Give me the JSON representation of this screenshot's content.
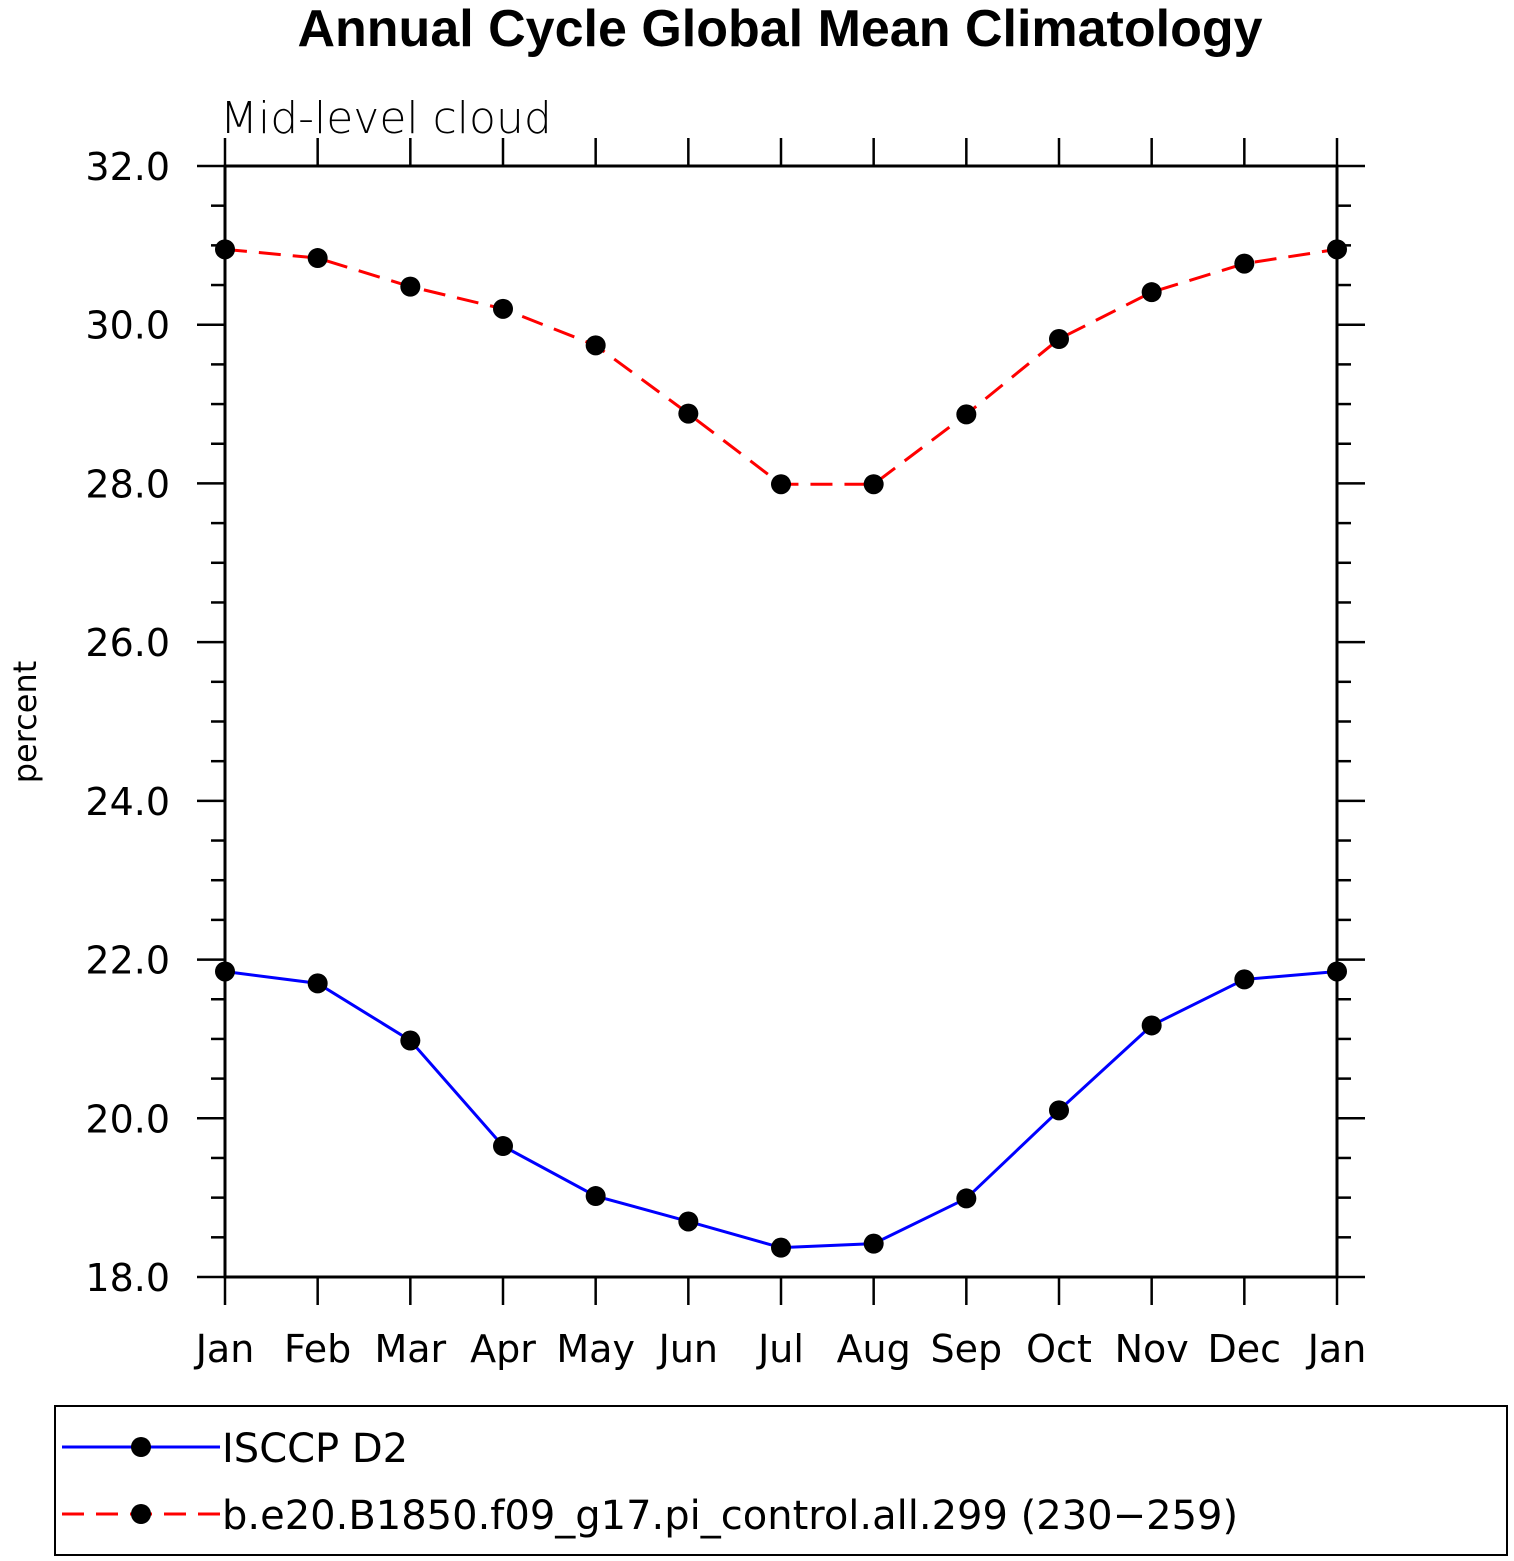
{
  "chart_data": {
    "type": "line",
    "title": "Annual Cycle Global Mean Climatology",
    "subtitle": "Mid-level cloud",
    "xlabel": "",
    "ylabel": "percent",
    "ylim": [
      18.0,
      32.0
    ],
    "yticks": [
      "18.0",
      "20.0",
      "22.0",
      "24.0",
      "26.0",
      "28.0",
      "30.0",
      "32.0"
    ],
    "ytick_values": [
      18,
      20,
      22,
      24,
      26,
      28,
      30,
      32
    ],
    "categories": [
      "Jan",
      "Feb",
      "Mar",
      "Apr",
      "May",
      "Jun",
      "Jul",
      "Aug",
      "Sep",
      "Oct",
      "Nov",
      "Dec",
      "Jan"
    ],
    "grid": false,
    "legend_position": "bottom",
    "series": [
      {
        "name": "ISCCP D2",
        "color": "#0000ff",
        "dash": "solid",
        "values": [
          21.85,
          21.7,
          20.98,
          19.65,
          19.02,
          18.7,
          18.37,
          18.42,
          18.99,
          20.1,
          21.17,
          21.75,
          21.85
        ]
      },
      {
        "name": "b.e20.B1850.f09_g17.pi_control.all.299 (230−259)",
        "color": "#ff0000",
        "dash": "dashed",
        "values": [
          30.95,
          30.84,
          30.48,
          30.2,
          29.74,
          28.88,
          27.99,
          27.99,
          28.87,
          29.82,
          30.41,
          30.77,
          30.95
        ]
      }
    ]
  }
}
